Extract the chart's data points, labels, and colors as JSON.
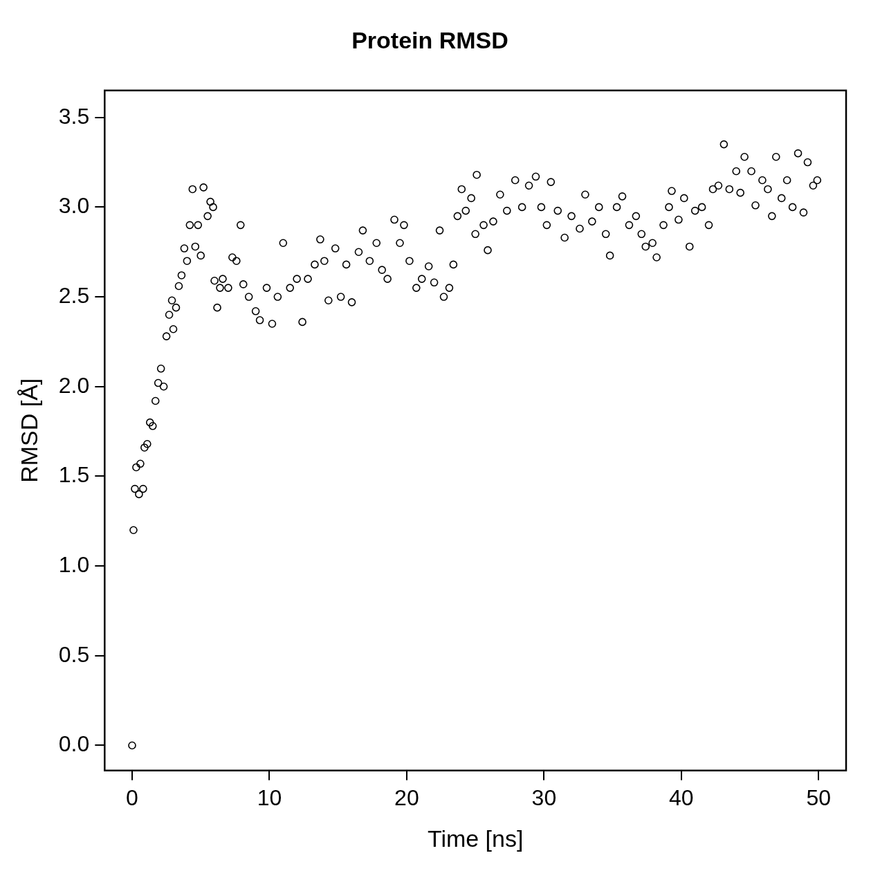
{
  "chart_data": {
    "type": "scatter",
    "title": "Protein RMSD",
    "xlabel": "Time [ns]",
    "ylabel": "RMSD [Å]",
    "marker": "circle",
    "grid": false,
    "legend": false,
    "xlim": [
      -2,
      52
    ],
    "ylim": [
      -0.14,
      3.65
    ],
    "xticks": [
      0,
      10,
      20,
      30,
      40,
      50
    ],
    "yticks": [
      {
        "value": 0,
        "label": "0.0"
      },
      {
        "value": 0.5,
        "label": "0.5"
      },
      {
        "value": 1,
        "label": "1.0"
      },
      {
        "value": 1.5,
        "label": "1.5"
      },
      {
        "value": 2,
        "label": "2.0"
      },
      {
        "value": 2.5,
        "label": "2.5"
      },
      {
        "value": 3,
        "label": "3.0"
      },
      {
        "value": 3.5,
        "label": "3.5"
      }
    ],
    "series": [
      {
        "color": "#000000",
        "x": [
          0,
          0.1,
          0.2,
          0.3,
          0.5,
          0.6,
          0.8,
          0.9,
          1.1,
          1.3,
          1.5,
          1.7,
          1.9,
          2.1,
          2.3,
          2.5,
          2.7,
          2.9,
          3.0,
          3.2,
          3.4,
          3.6,
          3.8,
          4.0,
          4.2,
          4.4,
          4.6,
          4.8,
          5.0,
          5.2,
          5.5,
          5.7,
          5.9,
          6.0,
          6.2,
          6.4,
          6.6,
          7.0,
          7.3,
          7.6,
          7.9,
          8.1,
          8.5,
          9.0,
          9.3,
          9.8,
          10.2,
          10.6,
          11.0,
          11.5,
          12.0,
          12.4,
          12.8,
          13.3,
          13.7,
          14.0,
          14.3,
          14.8,
          15.2,
          15.6,
          16.0,
          16.5,
          16.8,
          17.3,
          17.8,
          18.2,
          18.6,
          19.1,
          19.5,
          19.8,
          20.2,
          20.7,
          21.1,
          21.6,
          22.0,
          22.4,
          22.7,
          23.1,
          23.4,
          23.7,
          24.0,
          24.3,
          24.7,
          25.0,
          25.1,
          25.6,
          25.9,
          26.3,
          26.8,
          27.3,
          27.9,
          28.4,
          28.9,
          29.4,
          29.8,
          30.2,
          30.5,
          31.0,
          31.5,
          32.0,
          32.6,
          33.0,
          33.5,
          34.0,
          34.5,
          34.8,
          35.3,
          35.7,
          36.2,
          36.7,
          37.1,
          37.4,
          37.9,
          38.2,
          38.7,
          39.1,
          39.3,
          39.8,
          40.2,
          40.6,
          41.0,
          41.5,
          42.0,
          42.3,
          42.7,
          43.1,
          43.5,
          44.0,
          44.3,
          44.6,
          45.1,
          45.4,
          45.9,
          46.3,
          46.6,
          46.9,
          47.3,
          47.7,
          48.1,
          48.5,
          48.9,
          49.2,
          49.6,
          49.9
        ],
        "values": [
          0.0,
          1.2,
          1.43,
          1.55,
          1.4,
          1.57,
          1.43,
          1.66,
          1.68,
          1.8,
          1.78,
          1.92,
          2.02,
          2.1,
          2.0,
          2.28,
          2.4,
          2.48,
          2.32,
          2.44,
          2.56,
          2.62,
          2.77,
          2.7,
          2.9,
          3.1,
          2.78,
          2.9,
          2.73,
          3.11,
          2.95,
          3.03,
          3.0,
          2.59,
          2.44,
          2.55,
          2.6,
          2.55,
          2.72,
          2.7,
          2.9,
          2.57,
          2.5,
          2.42,
          2.37,
          2.55,
          2.35,
          2.5,
          2.8,
          2.55,
          2.6,
          2.36,
          2.6,
          2.68,
          2.82,
          2.7,
          2.48,
          2.77,
          2.5,
          2.68,
          2.47,
          2.75,
          2.87,
          2.7,
          2.8,
          2.65,
          2.6,
          2.93,
          2.8,
          2.9,
          2.7,
          2.55,
          2.6,
          2.67,
          2.58,
          2.87,
          2.5,
          2.55,
          2.68,
          2.95,
          3.1,
          2.98,
          3.05,
          2.85,
          3.18,
          2.9,
          2.76,
          2.92,
          3.07,
          2.98,
          3.15,
          3.0,
          3.12,
          3.17,
          3.0,
          2.9,
          3.14,
          2.98,
          2.83,
          2.95,
          2.88,
          3.07,
          2.92,
          3.0,
          2.85,
          2.73,
          3.0,
          3.06,
          2.9,
          2.95,
          2.85,
          2.78,
          2.8,
          2.72,
          2.9,
          3.0,
          3.09,
          2.93,
          3.05,
          2.78,
          2.98,
          3.0,
          2.9,
          3.1,
          3.12,
          3.35,
          3.1,
          3.2,
          3.08,
          3.28,
          3.2,
          3.01,
          3.15,
          3.1,
          2.95,
          3.28,
          3.05,
          3.15,
          3.0,
          3.3,
          2.97,
          3.25,
          3.12,
          3.15
        ]
      }
    ]
  }
}
